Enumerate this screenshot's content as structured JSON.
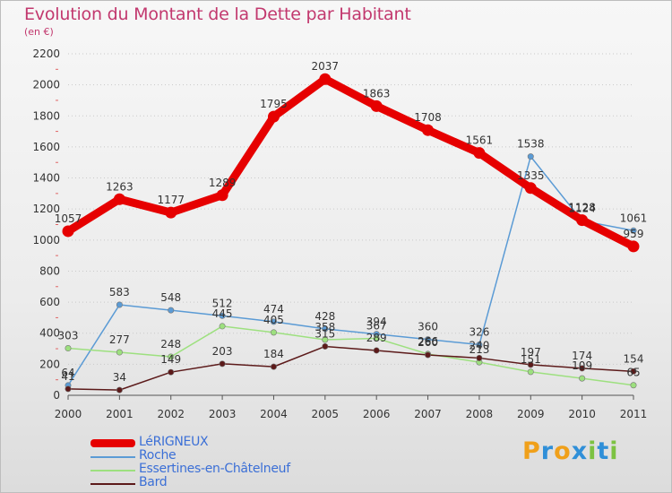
{
  "header": {
    "title": "Evolution du Montant de la Dette par Habitant",
    "unit": "(en €)"
  },
  "brand": {
    "letters": [
      "P",
      "r",
      "o",
      "x",
      "i",
      "t",
      "i"
    ],
    "colors": [
      "#f0a01a",
      "#2f8fd8",
      "#f0a01a",
      "#2f8fd8",
      "#7cc242",
      "#2f8fd8",
      "#7cc242"
    ]
  },
  "chart_data": {
    "type": "line",
    "x": [
      "2000",
      "2001",
      "2002",
      "2003",
      "2004",
      "2005",
      "2006",
      "2007",
      "2008",
      "2009",
      "2010",
      "2011"
    ],
    "ylim": [
      0,
      2200
    ],
    "yticks": [
      0,
      200,
      400,
      600,
      800,
      1000,
      1200,
      1400,
      1600,
      1800,
      2000,
      2200
    ],
    "grid": true,
    "legend_position": "bottom-left",
    "series": [
      {
        "name": "Roche",
        "color": "#5b9bd5",
        "values": [
          64,
          583,
          548,
          512,
          474,
          428,
          394,
          360,
          326,
          1538,
          1124,
          1061
        ]
      },
      {
        "name": "Essertines-en-Châtelneuf",
        "color": "#9de07f",
        "values": [
          303,
          277,
          248,
          445,
          405,
          358,
          367,
          266,
          213,
          151,
          109,
          65
        ]
      },
      {
        "name": "Bard",
        "color": "#5c1a1a",
        "values": [
          41,
          34,
          149,
          203,
          184,
          315,
          289,
          260,
          240,
          197,
          174,
          154
        ]
      },
      {
        "name": "LéRIGNEUX",
        "color": "#e60000",
        "values": [
          1057,
          1263,
          1177,
          1289,
          1795,
          2037,
          1863,
          1708,
          1561,
          1335,
          1128,
          959
        ]
      }
    ],
    "data_labels": [
      {
        "series": "LéRIGNEUX",
        "labels": [
          "1057",
          "1263",
          "1177",
          "1289",
          "1795",
          "2037",
          "1863",
          "1708",
          "1561",
          "1335",
          "1128",
          "959"
        ]
      },
      {
        "series": "Roche",
        "labels": [
          "64",
          "583",
          "548",
          "512",
          "474",
          "428",
          "394",
          "360",
          "326",
          "1538",
          "1124",
          "1061"
        ]
      },
      {
        "series": "Essertines-en-Châtelneuf",
        "labels": [
          "303",
          "277",
          "248",
          "445",
          "405",
          "358",
          "367",
          "266",
          "213",
          "151",
          "109",
          "65"
        ]
      },
      {
        "series": "Bard",
        "labels": [
          "41",
          "34",
          "149",
          "203",
          "184",
          "315",
          "289",
          "260",
          "240",
          "197",
          "174",
          "154"
        ]
      }
    ]
  },
  "legend": {
    "items": [
      {
        "label": "LéRIGNEUX",
        "color": "#e60000",
        "style": "thick"
      },
      {
        "label": "Roche",
        "color": "#5b9bd5",
        "style": "thin"
      },
      {
        "label": "Essertines-en-Châtelneuf",
        "color": "#9de07f",
        "style": "thin"
      },
      {
        "label": "Bard",
        "color": "#5c1a1a",
        "style": "thin"
      }
    ]
  }
}
